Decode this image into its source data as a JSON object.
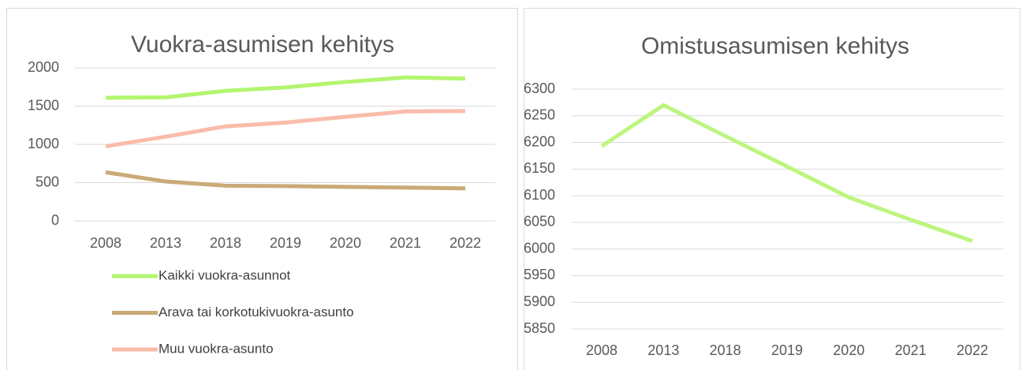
{
  "chart_data": [
    {
      "type": "line",
      "title": "Vuokra-asumisen kehitys",
      "categories": [
        "2008",
        "2013",
        "2018",
        "2019",
        "2020",
        "2021",
        "2022"
      ],
      "series": [
        {
          "name": "Kaikki vuokra-asunnot",
          "color": "#b3f56f",
          "values": [
            1610,
            1615,
            1700,
            1745,
            1815,
            1875,
            1860
          ]
        },
        {
          "name": "Arava tai korkotukivuokra-asunto",
          "color": "#c9aa78",
          "values": [
            635,
            515,
            460,
            455,
            445,
            435,
            425
          ]
        },
        {
          "name": "Muu vuokra-asunto",
          "color": "#f9bcab",
          "values": [
            975,
            1100,
            1235,
            1285,
            1360,
            1430,
            1435
          ]
        }
      ],
      "ylim": [
        0,
        2000
      ],
      "yticks": [
        0,
        500,
        1000,
        1500,
        2000
      ],
      "grid": true,
      "legend": "bottom"
    },
    {
      "type": "line",
      "title": "Omistusasumisen kehitys",
      "categories": [
        "2008",
        "2013",
        "2018",
        "2019",
        "2020",
        "2021",
        "2022"
      ],
      "series": [
        {
          "color": "#bdf57f",
          "values": [
            6193,
            6270,
            6212,
            6155,
            6097,
            6055,
            6015
          ]
        }
      ],
      "ylim": [
        5850,
        6300
      ],
      "yticks": [
        5850,
        5900,
        5950,
        6000,
        6050,
        6100,
        6150,
        6200,
        6250,
        6300
      ],
      "grid": true
    }
  ]
}
